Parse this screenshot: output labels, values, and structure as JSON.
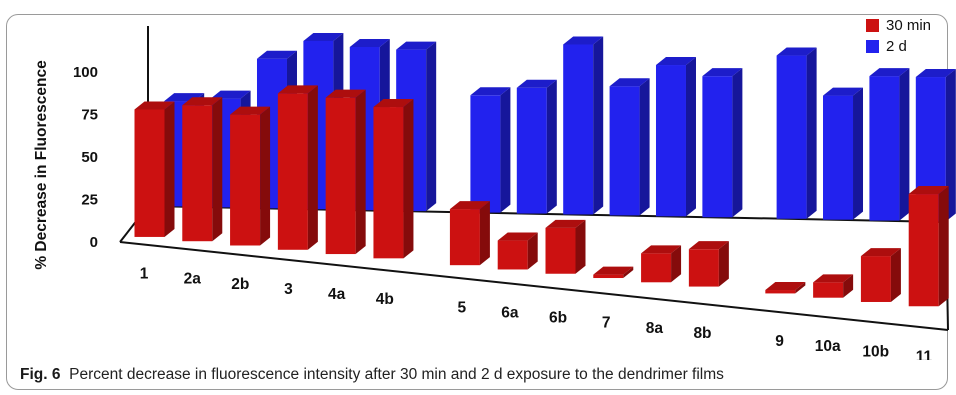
{
  "caption": {
    "label": "Fig. 6",
    "text": "Percent decrease in fluorescence intensity after 30 min and 2 d exposure to the dendrimer films"
  },
  "chart_data": {
    "type": "bar",
    "style": "3d",
    "ylabel": "% Decrease in Fluorescence",
    "xlabel": "",
    "ylim": [
      0,
      100
    ],
    "yticks": [
      0,
      25,
      50,
      75,
      100
    ],
    "legend_position": "top-right",
    "categories": [
      "1",
      "2a",
      "2b",
      "3",
      "4a",
      "4b",
      "5",
      "6a",
      "6b",
      "7",
      "8a",
      "8b",
      "9",
      "10a",
      "10b",
      "11"
    ],
    "series": [
      {
        "name": "30 min",
        "color": "#cc1111",
        "values": [
          75,
          80,
          77,
          92,
          92,
          89,
          33,
          17,
          27,
          2,
          17,
          22,
          2,
          9,
          27,
          66
        ]
      },
      {
        "name": "2 d",
        "color": "#2222ee",
        "values": [
          62,
          64,
          88,
          99,
          96,
          95,
          69,
          74,
          100,
          76,
          89,
          83,
          96,
          73,
          85,
          85
        ]
      }
    ]
  }
}
